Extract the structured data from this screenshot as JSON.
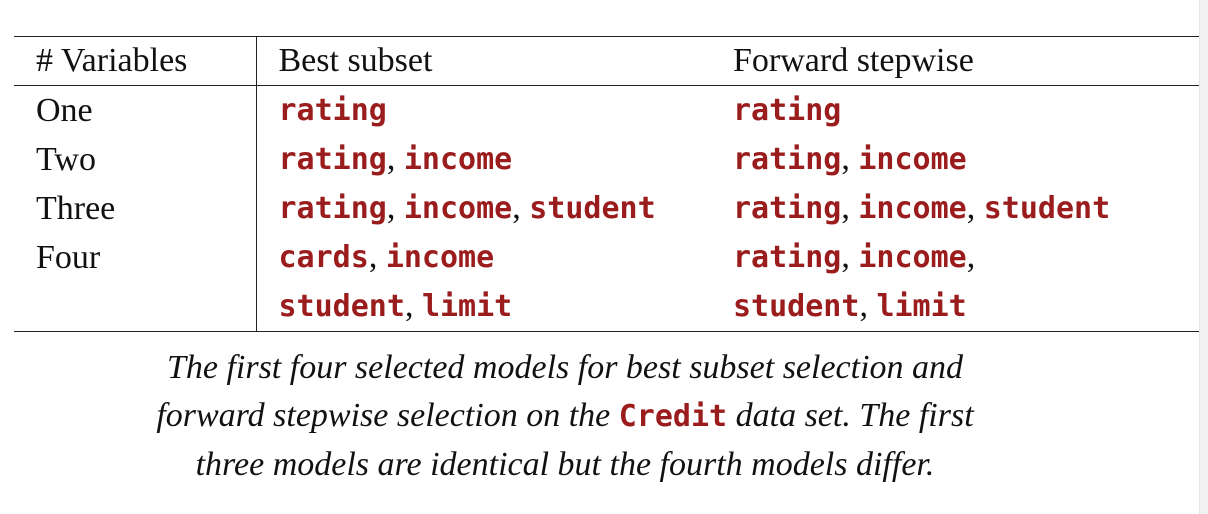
{
  "table": {
    "headers": [
      "# Variables",
      "Best subset",
      "Forward stepwise"
    ],
    "rows": [
      {
        "label": "One",
        "best": [
          "rating"
        ],
        "forward": [
          "rating"
        ]
      },
      {
        "label": "Two",
        "best": [
          "rating",
          "income"
        ],
        "forward": [
          "rating",
          "income"
        ]
      },
      {
        "label": "Three",
        "best": [
          "rating",
          "income",
          "student"
        ],
        "forward": [
          "rating",
          "income",
          "student"
        ]
      },
      {
        "label": "Four",
        "best": [
          "cards",
          "income"
        ],
        "forward": [
          "rating",
          "income"
        ]
      },
      {
        "label": "",
        "best": [
          "student",
          "limit"
        ],
        "forward": [
          "student",
          "limit"
        ]
      }
    ],
    "separator": ",",
    "trailing_comma_row4_forward": ","
  },
  "caption": {
    "line1": "The first four selected models for best subset selection and",
    "line2_before": "forward stepwise selection on the",
    "dataset": "Credit",
    "line2_after": "data set. The first",
    "line3": "three models are identical but the fourth models differ."
  },
  "colors": {
    "variable": "#9b1c1c",
    "rule": "#222222"
  }
}
